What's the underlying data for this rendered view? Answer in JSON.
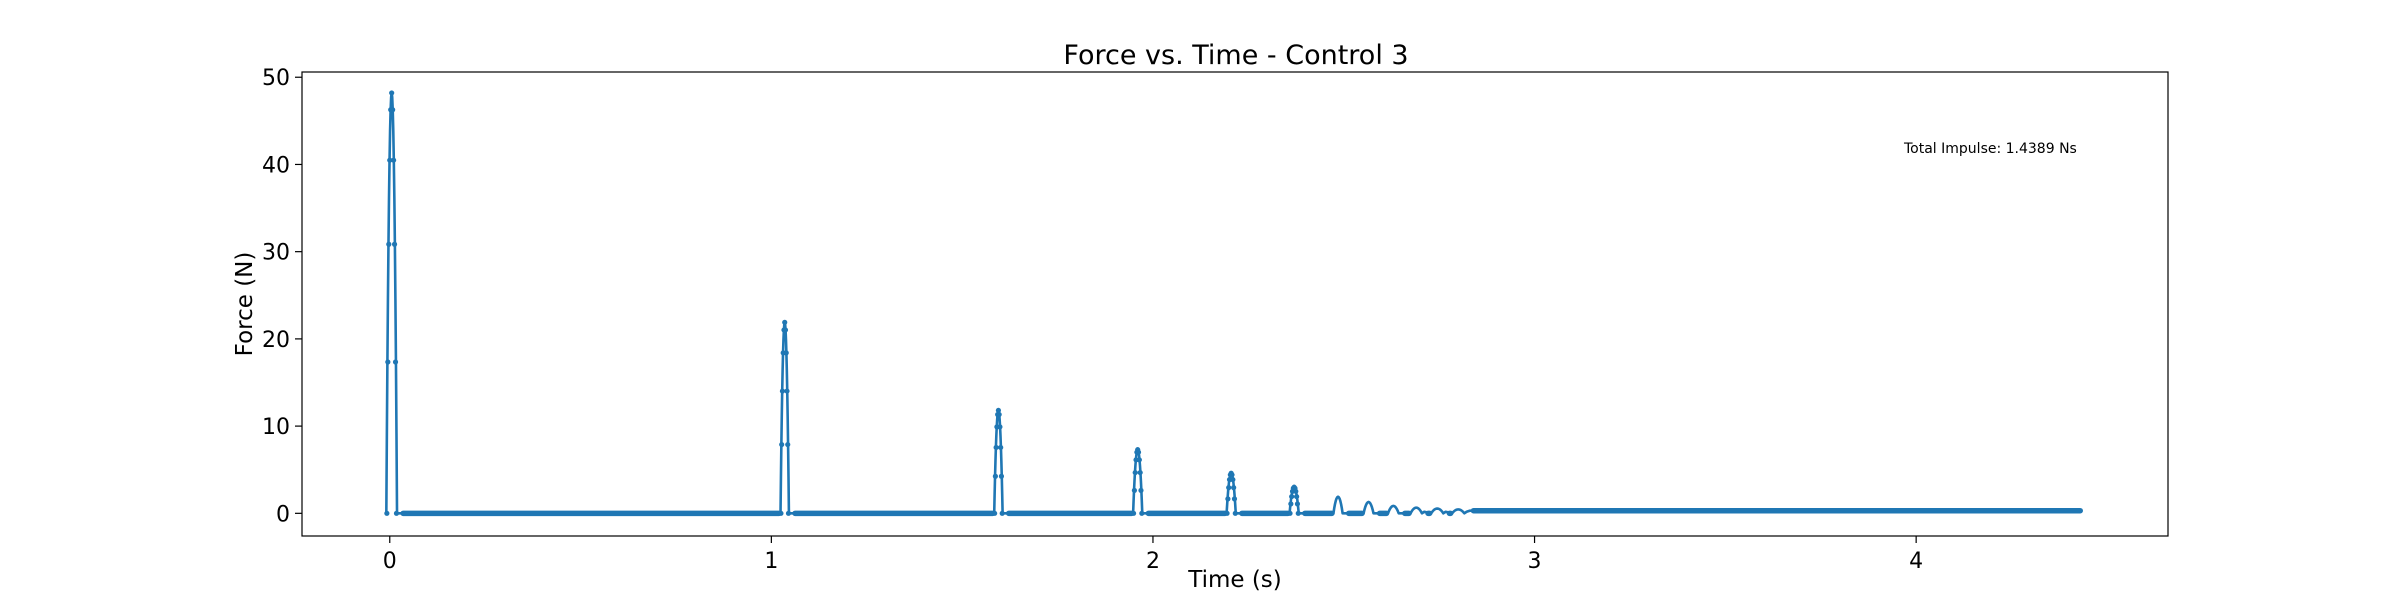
{
  "chart_data": {
    "type": "line",
    "title": "Force vs. Time - Control 3",
    "xlabel": "Time (s)",
    "ylabel": "Force (N)",
    "xlim": [
      -0.23,
      4.66
    ],
    "ylim": [
      -2.6,
      50.6
    ],
    "xticks": [
      0,
      1,
      2,
      3,
      4
    ],
    "yticks": [
      0,
      10,
      20,
      30,
      40,
      50
    ],
    "grid": false,
    "legend": "none",
    "series_color": "#1f77b4",
    "annotation": "Total Impulse: 1.4389 Ns",
    "series": [
      {
        "name": "",
        "peaks": [
          {
            "t": 0.005,
            "f": 48.2
          },
          {
            "t": 1.035,
            "f": 21.9
          },
          {
            "t": 1.595,
            "f": 11.8
          },
          {
            "t": 1.96,
            "f": 7.3
          },
          {
            "t": 2.205,
            "f": 4.6
          },
          {
            "t": 2.37,
            "f": 3.0
          },
          {
            "t": 2.485,
            "f": 1.9
          },
          {
            "t": 2.565,
            "f": 1.3
          },
          {
            "t": 2.63,
            "f": 0.85
          },
          {
            "t": 2.69,
            "f": 0.65
          },
          {
            "t": 2.745,
            "f": 0.55
          },
          {
            "t": 2.8,
            "f": 0.45
          }
        ],
        "baseline": 0.0,
        "tail_level": 0.3,
        "t_start": -0.005,
        "t_end": 4.43
      }
    ]
  }
}
